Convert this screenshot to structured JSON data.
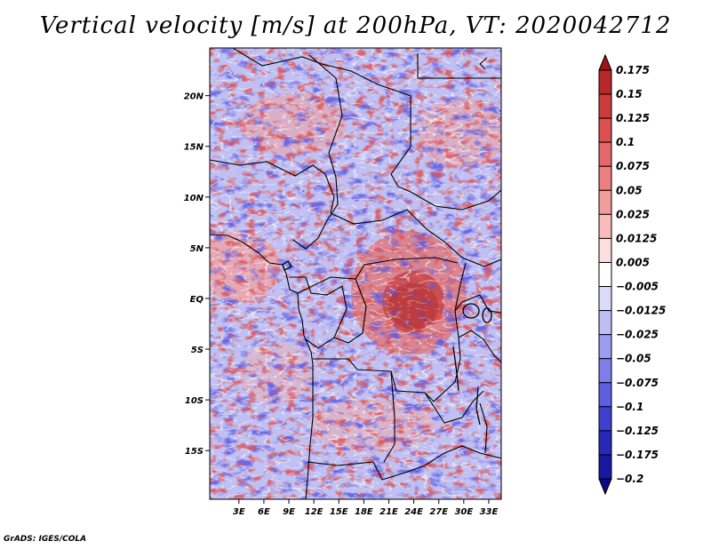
{
  "title": "Vertical velocity [m/s] at 200hPa, VT: 2020042712",
  "footer": "GrADS: IGES/COLA",
  "map": {
    "lon_range": [
      -0.5,
      34.5
    ],
    "lat_range": [
      -19.8,
      24.7
    ],
    "x_ticks": [
      {
        "value": 3,
        "label": "3E"
      },
      {
        "value": 6,
        "label": "6E"
      },
      {
        "value": 9,
        "label": "9E"
      },
      {
        "value": 12,
        "label": "12E"
      },
      {
        "value": 15,
        "label": "15E"
      },
      {
        "value": 18,
        "label": "18E"
      },
      {
        "value": 21,
        "label": "21E"
      },
      {
        "value": 24,
        "label": "24E"
      },
      {
        "value": 27,
        "label": "27E"
      },
      {
        "value": 30,
        "label": "30E"
      },
      {
        "value": 33,
        "label": "33E"
      }
    ],
    "y_ticks": [
      {
        "value": 20,
        "label": "20N"
      },
      {
        "value": 15,
        "label": "15N"
      },
      {
        "value": 10,
        "label": "10N"
      },
      {
        "value": 5,
        "label": "5N"
      },
      {
        "value": 0,
        "label": "EQ"
      },
      {
        "value": -5,
        "label": "5S"
      },
      {
        "value": -10,
        "label": "10S"
      },
      {
        "value": -15,
        "label": "15S"
      }
    ]
  },
  "colorbar": {
    "labels": [
      "0.175",
      "0.15",
      "0.125",
      "0.1",
      "0.075",
      "0.05",
      "0.025",
      "0.0125",
      "0.005",
      "-0.005",
      "-0.0125",
      "-0.025",
      "-0.05",
      "-0.075",
      "-0.1",
      "-0.125",
      "-0.175",
      "-0.2"
    ],
    "colors": [
      "#a01414",
      "#b82828",
      "#cc3c3c",
      "#dc5050",
      "#e46868",
      "#ec8080",
      "#f29c9c",
      "#f8bcbc",
      "#fcdede",
      "#ffffff",
      "#dcdcfa",
      "#bebef5",
      "#9c9cf0",
      "#7e7ee8",
      "#5e5ee0",
      "#4040d0",
      "#2828b8",
      "#1818a0",
      "#0c0c82"
    ]
  }
}
